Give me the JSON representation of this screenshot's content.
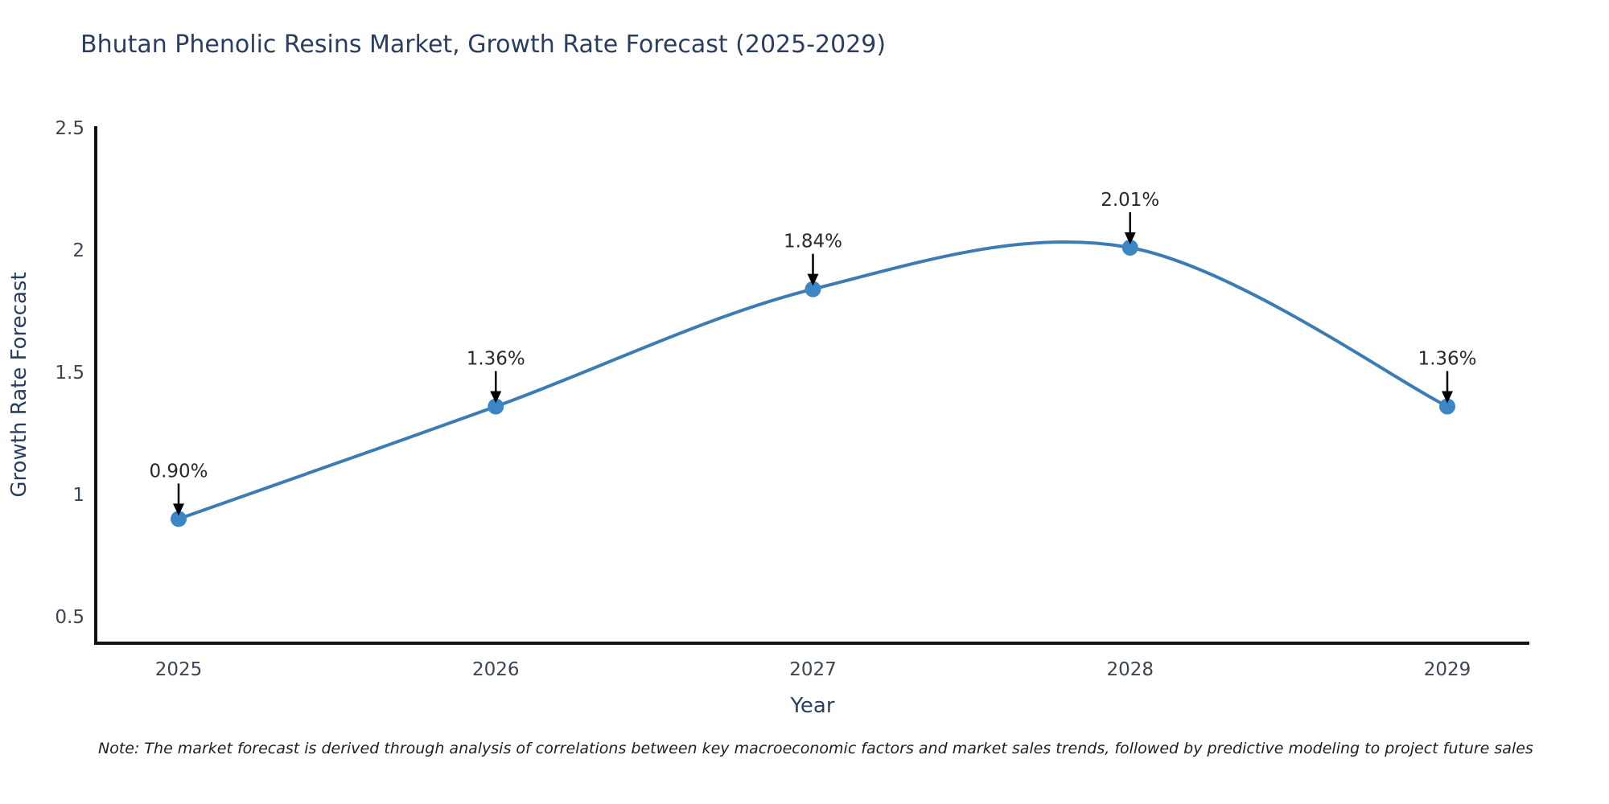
{
  "header": {
    "title": "Bhutan Phenolic Resins Market, Growth Rate Forecast (2025-2029)"
  },
  "footnote": {
    "text": "Note: The market forecast is derived through analysis of correlations between key macroeconomic factors and market sales trends, followed by predictive modeling to project future sales"
  },
  "chart_data": {
    "type": "line",
    "title": "Bhutan Phenolic Resins Market, Growth Rate Forecast (2025-2029)",
    "xlabel": "Year",
    "ylabel": "Growth Rate Forecast",
    "x": [
      "2025",
      "2026",
      "2027",
      "2028",
      "2029"
    ],
    "series": [
      {
        "name": "Growth Rate Forecast",
        "values": [
          0.9,
          1.36,
          1.84,
          2.01,
          1.36
        ]
      }
    ],
    "point_labels": [
      "0.90%",
      "1.36%",
      "1.84%",
      "2.01%",
      "1.36%"
    ],
    "yticks": [
      0.5,
      1.0,
      1.5,
      2.0,
      2.5
    ],
    "ytick_labels": [
      "0.5",
      "1",
      "1.5",
      "2",
      "2.5"
    ],
    "ylim": [
      0.39,
      2.5
    ],
    "line_shape": "spline",
    "grid": false,
    "legend_position": "none",
    "colors": {
      "line": "#3c7cb4",
      "marker": "#3d86c6",
      "spine": "#111111",
      "tick_label": "#3b4655",
      "axis_title": "#2a3f5f",
      "annotation_text": "#2a2a2a",
      "annotation_arrow": "#000000"
    }
  }
}
